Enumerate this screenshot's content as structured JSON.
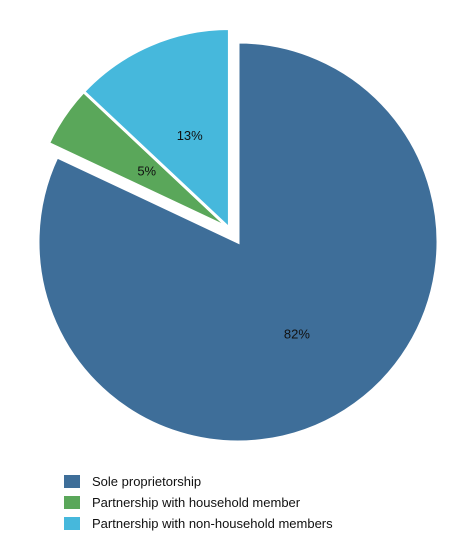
{
  "chart_data": {
    "type": "pie",
    "title": "",
    "slices": [
      {
        "label": "Sole proprietorship",
        "value": 82,
        "data_label": "82%",
        "color": "#3e6e99",
        "exploded": false
      },
      {
        "label": "Partnership with household member",
        "value": 5,
        "data_label": "5%",
        "color": "#5aa75a",
        "exploded": true
      },
      {
        "label": "Partnership with non-household members",
        "value": 13,
        "data_label": "13%",
        "color": "#46b8dc",
        "exploded": true
      }
    ],
    "legend_position": "bottom-left",
    "start_angle_direction": "clockwise from 12 o'clock"
  }
}
